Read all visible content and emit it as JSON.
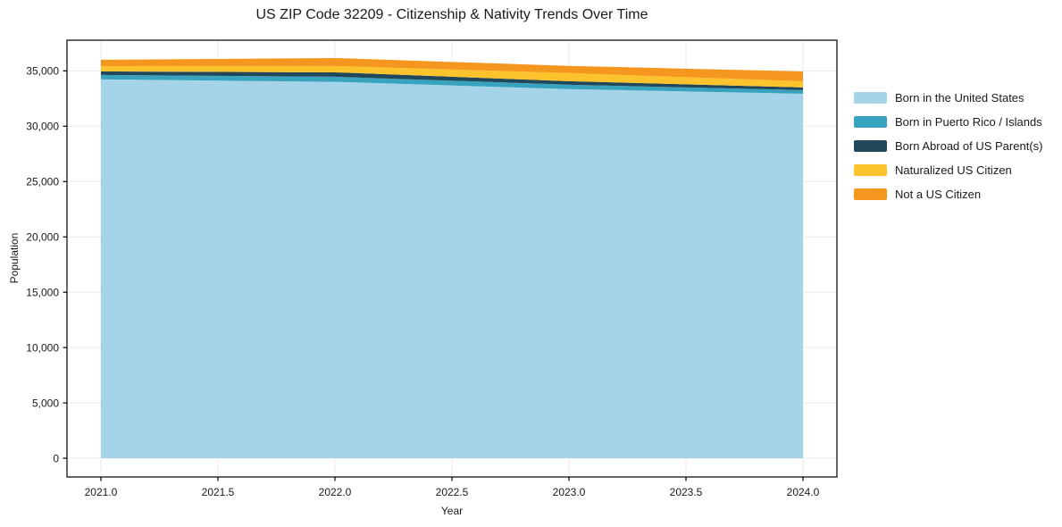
{
  "chart": {
    "title": "US ZIP Code 32209 - Citizenship & Nativity Trends Over Time",
    "xlabel": "Year",
    "ylabel": "Population"
  },
  "chart_data": {
    "type": "area",
    "stacked": true,
    "title": "US ZIP Code 32209 - Citizenship & Nativity Trends Over Time",
    "xlabel": "Year",
    "ylabel": "Population",
    "grid": true,
    "legend_position": "right-outside",
    "x": [
      2021,
      2022,
      2023,
      2024
    ],
    "series": [
      {
        "name": "Born in the United States",
        "color": "#a5d3e8",
        "values": [
          34230,
          34010,
          33350,
          32930
        ]
      },
      {
        "name": "Born in Puerto Rico / Islands",
        "color": "#38a3bf",
        "values": [
          400,
          460,
          400,
          330
        ]
      },
      {
        "name": "Born Abroad of US Parent(s)",
        "color": "#21485a",
        "values": [
          320,
          400,
          320,
          240
        ]
      },
      {
        "name": "Naturalized US Citizen",
        "color": "#fcc32d",
        "values": [
          480,
          570,
          730,
          560
        ]
      },
      {
        "name": "Not a US Citizen",
        "color": "#f5961f",
        "values": [
          570,
          720,
          650,
          890
        ]
      }
    ],
    "totals": [
      36000,
      36160,
      35450,
      34950
    ],
    "xlim": [
      2020.855,
      2024.145
    ],
    "ylim": [
      -1690,
      37770
    ],
    "xticks": [
      {
        "v": 2021.0,
        "label": "2021.0"
      },
      {
        "v": 2021.5,
        "label": "2021.5"
      },
      {
        "v": 2022.0,
        "label": "2022.0"
      },
      {
        "v": 2022.5,
        "label": "2022.5"
      },
      {
        "v": 2023.0,
        "label": "2023.0"
      },
      {
        "v": 2023.5,
        "label": "2023.5"
      },
      {
        "v": 2024.0,
        "label": "2024.0"
      }
    ],
    "yticks": [
      {
        "v": 0,
        "label": "0"
      },
      {
        "v": 5000,
        "label": "5,000"
      },
      {
        "v": 10000,
        "label": "10,000"
      },
      {
        "v": 15000,
        "label": "15,000"
      },
      {
        "v": 20000,
        "label": "20,000"
      },
      {
        "v": 25000,
        "label": "25,000"
      },
      {
        "v": 30000,
        "label": "30,000"
      },
      {
        "v": 35000,
        "label": "35,000"
      }
    ]
  },
  "colors": {
    "background": "#ffffff",
    "grid": "#ebebeb",
    "spine": "#000000",
    "text": "#1a1a1a"
  }
}
